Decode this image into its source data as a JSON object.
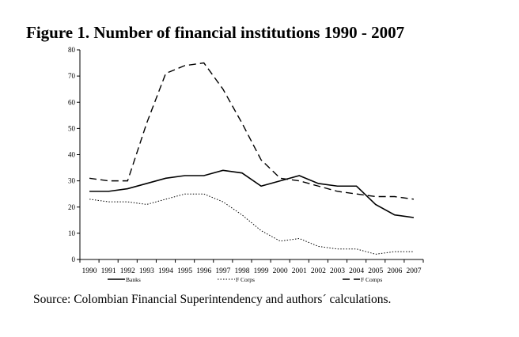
{
  "chart_data": {
    "type": "line",
    "title": "Figure 1. Number of financial institutions 1990 - 2007",
    "source": "Source: Colombian Financial Superintendency and authors´ calculations.",
    "x": [
      "1990",
      "1991",
      "1992",
      "1993",
      "1994",
      "1995",
      "1996",
      "1997",
      "1998",
      "1999",
      "2000",
      "2001",
      "2002",
      "2003",
      "2004",
      "2005",
      "2006",
      "2007"
    ],
    "ylim": [
      0,
      80
    ],
    "yticks": [
      0,
      10,
      20,
      30,
      40,
      50,
      60,
      70,
      80
    ],
    "xlabel": "",
    "ylabel": "",
    "grid": false,
    "legend": "bottom",
    "series": [
      {
        "name": "Banks",
        "style": "solid",
        "values": [
          26,
          26,
          27,
          29,
          31,
          32,
          32,
          34,
          33,
          28,
          30,
          32,
          29,
          28,
          28,
          21,
          17,
          16
        ]
      },
      {
        "name": "F Corps",
        "style": "dotted",
        "values": [
          23,
          22,
          22,
          21,
          23,
          25,
          25,
          22,
          17,
          11,
          7,
          8,
          5,
          4,
          4,
          2,
          3,
          3
        ]
      },
      {
        "name": "F Comps",
        "style": "dashed",
        "values": [
          31,
          30,
          30,
          52,
          71,
          74,
          75,
          65,
          52,
          38,
          31,
          30,
          28,
          26,
          25,
          24,
          24,
          23
        ]
      }
    ]
  }
}
